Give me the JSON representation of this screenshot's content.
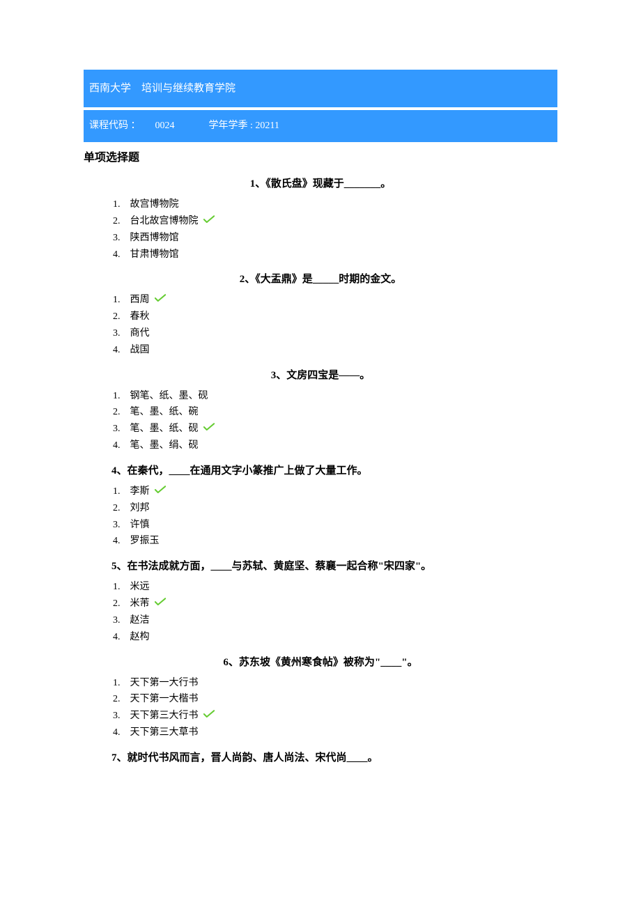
{
  "header": {
    "institution": "西南大学　培训与继续教育学院",
    "course_label": "课程代码 ：",
    "course_code": "0024",
    "semester_label": "学年学季 : ",
    "semester": "20211"
  },
  "section_title": "单项选择题",
  "questions": [
    {
      "number": "1、",
      "text": "《散氏盘》现藏于_______。",
      "align": "center",
      "options": [
        "故宫博物院",
        "台北故宫博物院",
        "陕西博物馆",
        "甘肃博物馆"
      ],
      "correct": 1
    },
    {
      "number": "2、",
      "text": "《大盂鼎》是_____时期的金文。",
      "align": "center",
      "options": [
        "西周",
        "春秋",
        "商代",
        "战国"
      ],
      "correct": 0
    },
    {
      "number": "3、",
      "text": "文房四宝是——。",
      "align": "center",
      "options": [
        "钢笔、纸、墨、砚",
        "笔、墨、纸、碗",
        "笔、墨、纸、砚",
        "笔、墨、绢、砚"
      ],
      "correct": 2
    },
    {
      "number": "4、",
      "text": "在秦代，____在通用文字小篆推广上做了大量工作。",
      "align": "left",
      "options": [
        "李斯",
        "刘邦",
        "许慎",
        "罗振玉"
      ],
      "correct": 0
    },
    {
      "number": "5、",
      "text": "在书法成就方面，____与苏轼、黄庭坚、蔡襄一起合称\"宋四家\"。",
      "align": "left",
      "options": [
        "米远",
        "米芾",
        "赵洁",
        "赵构"
      ],
      "correct": 1
    },
    {
      "number": "6、",
      "text": "苏东坡《黄州寒食帖》被称为\"____\"。",
      "align": "center",
      "options": [
        "天下第一大行书",
        "天下第一大楷书",
        "天下第三大行书",
        "天下第三大草书"
      ],
      "correct": 2
    },
    {
      "number": "7、",
      "text": "就时代书风而言，晋人尚韵、唐人尚法、宋代尚____。",
      "align": "left",
      "options": [],
      "correct": -1
    }
  ],
  "colors": {
    "header_bg": "#3399ff",
    "header_text": "#ffffff",
    "check_stroke": "#66cc33"
  }
}
